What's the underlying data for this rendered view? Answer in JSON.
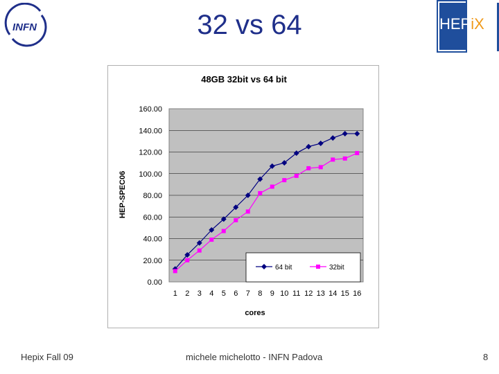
{
  "slide": {
    "title": "32 vs 64",
    "footer_left": "Hepix Fall 09",
    "footer_center": "michele michelotto - INFN Padova",
    "footer_right": "8"
  },
  "logos": {
    "infn": "INFN",
    "hepix_a": "HEP",
    "hepix_b": "iX"
  },
  "colors": {
    "title": "#1f2f8a",
    "plot_bg": "#c0c0c0",
    "series_64": "#000080",
    "series_32": "#ff00ff"
  },
  "chart_data": {
    "type": "line",
    "title": "48GB 32bit vs 64 bit",
    "xlabel": "cores",
    "ylabel": "HEP-SPEC06",
    "categories": [
      "1",
      "2",
      "3",
      "4",
      "5",
      "6",
      "7",
      "8",
      "9",
      "10",
      "11",
      "12",
      "13",
      "14",
      "15",
      "16"
    ],
    "ylim": [
      0,
      160
    ],
    "yticks": [
      "0.00",
      "20.00",
      "40.00",
      "60.00",
      "80.00",
      "100.00",
      "120.00",
      "140.00",
      "160.00"
    ],
    "grid": true,
    "legend_position": "bottom-right inside plot",
    "series": [
      {
        "name": "64 bit",
        "marker": "diamond",
        "values": [
          12,
          25,
          36,
          48,
          58,
          69,
          80,
          95,
          107,
          110,
          119,
          125,
          128,
          133,
          137,
          137
        ]
      },
      {
        "name": "32bit",
        "marker": "square",
        "values": [
          10,
          20,
          29,
          39,
          47,
          57,
          65,
          82,
          88,
          94,
          98,
          105,
          106,
          113,
          114,
          119
        ]
      }
    ]
  }
}
